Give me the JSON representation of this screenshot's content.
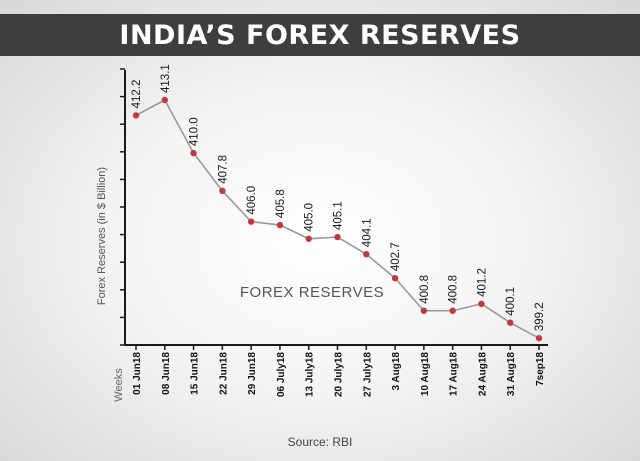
{
  "title": "INDIA’S FOREX RESERVES",
  "source": "Source: RBI",
  "chart_data": {
    "type": "line",
    "ylabel": "Forex Reserves (in $ Billion)",
    "xlabel": "Weeks",
    "series_annotation": "FOREX RESERVES",
    "ylim": [
      398.8,
      413.8
    ],
    "grid": false,
    "line_color": "#999999",
    "marker_color": "#c0393b",
    "categories": [
      "01 Jun18",
      "08 Jun18",
      "15 Jun18",
      "22 Jun18",
      "29 Jun18",
      "06 July18",
      "13 July18",
      "20 July18",
      "27 July18",
      "3 Aug18",
      "10 Aug18",
      "17 Aug18",
      "24 Aug18",
      "31 Aug18",
      "7sep18"
    ],
    "values": [
      412.2,
      413.1,
      410.0,
      407.8,
      406.0,
      405.8,
      405.0,
      405.1,
      404.1,
      402.7,
      400.8,
      400.8,
      401.2,
      400.1,
      399.2
    ],
    "value_labels": [
      "412.2",
      "413.1",
      "410.0",
      "407.8",
      "406.0",
      "405.8",
      "405.0",
      "405.1",
      "404.1",
      "402.7",
      "400.8",
      "400.8",
      "401.2",
      "400.1",
      "399.2"
    ]
  }
}
